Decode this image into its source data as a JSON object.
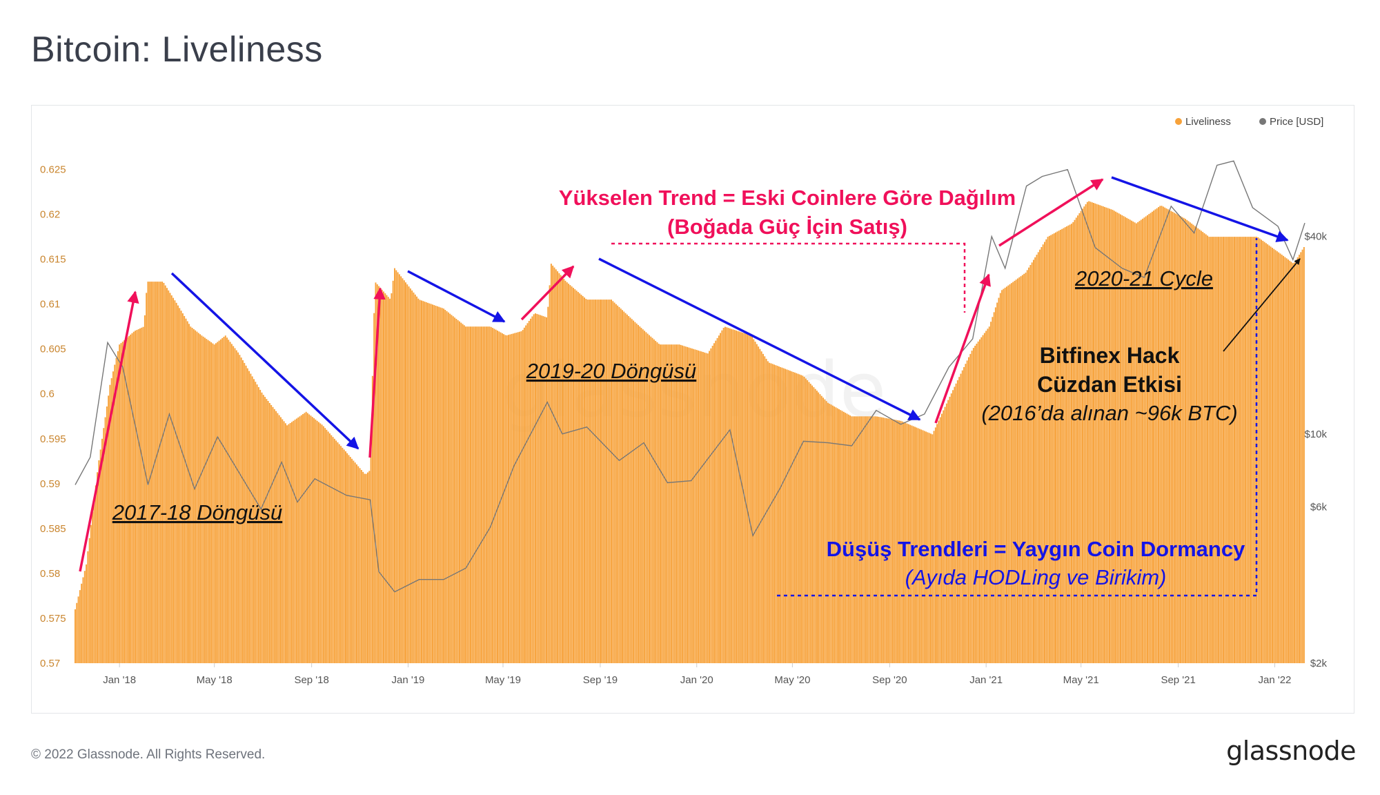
{
  "title": "Bitcoin: Liveliness",
  "footer": "© 2022 Glassnode. All Rights Reserved.",
  "brand": "glassnode",
  "watermark": "glassnode",
  "colors": {
    "liveliness": "#f7a23a",
    "price": "#777777",
    "up_arrow": "#f0105a",
    "down_arrow": "#1414e6",
    "axis_left": "#c9852e",
    "axis_right": "#555555"
  },
  "chart_data": {
    "type": "bar",
    "title": "Bitcoin: Liveliness",
    "legend": [
      {
        "label": "Liveliness",
        "color": "#f7a23a"
      },
      {
        "label": "Price [USD]",
        "color": "#777777"
      }
    ],
    "legend_position": "top-right",
    "x_ticks": [
      "Jan '18",
      "May '18",
      "Sep '18",
      "Jan '19",
      "May '19",
      "Sep '19",
      "Jan '20",
      "May '20",
      "Sep '20",
      "Jan '21",
      "May '21",
      "Sep '21",
      "Jan '22"
    ],
    "x_range": [
      "2017-11-06",
      "2022-02-08"
    ],
    "y_left": {
      "label": "Liveliness",
      "ylim": [
        0.57,
        0.6275
      ],
      "ticks": [
        "0.57",
        "0.575",
        "0.58",
        "0.585",
        "0.59",
        "0.595",
        "0.6",
        "0.605",
        "0.61",
        "0.615",
        "0.62",
        "0.625"
      ]
    },
    "y_right": {
      "label": "Price [USD]",
      "scale": "log",
      "ylim": [
        2000,
        75000
      ],
      "ticks": [
        {
          "value": 2000,
          "label": "$2k"
        },
        {
          "value": 6000,
          "label": "$6k"
        },
        {
          "value": 10000,
          "label": "$10k"
        },
        {
          "value": 40000,
          "label": "$40k"
        }
      ]
    },
    "liveliness_series": {
      "name": "Liveliness",
      "points": [
        [
          "2017-11-06",
          0.576
        ],
        [
          "2017-11-20",
          0.581
        ],
        [
          "2017-12-05",
          0.592
        ],
        [
          "2017-12-20",
          0.601
        ],
        [
          "2018-01-01",
          0.6055
        ],
        [
          "2018-01-20",
          0.607
        ],
        [
          "2018-02-01",
          0.6075
        ],
        [
          "2018-02-05",
          0.6125
        ],
        [
          "2018-02-25",
          0.6125
        ],
        [
          "2018-03-15",
          0.61
        ],
        [
          "2018-04-01",
          0.6075
        ],
        [
          "2018-04-15",
          0.6065
        ],
        [
          "2018-05-01",
          0.6055
        ],
        [
          "2018-05-15",
          0.6065
        ],
        [
          "2018-06-01",
          0.6045
        ],
        [
          "2018-07-01",
          0.6
        ],
        [
          "2018-08-01",
          0.5965
        ],
        [
          "2018-08-25",
          0.598
        ],
        [
          "2018-09-15",
          0.5965
        ],
        [
          "2018-10-15",
          0.5935
        ],
        [
          "2018-11-08",
          0.591
        ],
        [
          "2018-11-14",
          0.5915
        ],
        [
          "2018-11-20",
          0.6125
        ],
        [
          "2018-11-30",
          0.6115
        ],
        [
          "2018-12-10",
          0.6105
        ],
        [
          "2018-12-15",
          0.614
        ],
        [
          "2019-01-15",
          0.6105
        ],
        [
          "2019-02-15",
          0.6095
        ],
        [
          "2019-03-15",
          0.6075
        ],
        [
          "2019-04-15",
          0.6075
        ],
        [
          "2019-05-05",
          0.6065
        ],
        [
          "2019-05-25",
          0.607
        ],
        [
          "2019-06-10",
          0.609
        ],
        [
          "2019-06-26",
          0.6085
        ],
        [
          "2019-07-01",
          0.6145
        ],
        [
          "2019-07-20",
          0.6125
        ],
        [
          "2019-08-15",
          0.6105
        ],
        [
          "2019-09-15",
          0.6105
        ],
        [
          "2019-10-15",
          0.608
        ],
        [
          "2019-11-15",
          0.6055
        ],
        [
          "2019-12-10",
          0.6055
        ],
        [
          "2020-01-15",
          0.6045
        ],
        [
          "2020-02-05",
          0.6075
        ],
        [
          "2020-03-10",
          0.6065
        ],
        [
          "2020-04-01",
          0.6035
        ],
        [
          "2020-05-15",
          0.602
        ],
        [
          "2020-06-15",
          0.599
        ],
        [
          "2020-07-15",
          0.5975
        ],
        [
          "2020-08-15",
          0.5975
        ],
        [
          "2020-09-15",
          0.597
        ],
        [
          "2020-10-25",
          0.5955
        ],
        [
          "2020-11-15",
          0.5995
        ],
        [
          "2020-12-15",
          0.605
        ],
        [
          "2021-01-05",
          0.6075
        ],
        [
          "2021-01-20",
          0.6115
        ],
        [
          "2021-02-20",
          0.6135
        ],
        [
          "2021-03-20",
          0.6175
        ],
        [
          "2021-04-20",
          0.619
        ],
        [
          "2021-05-10",
          0.6215
        ],
        [
          "2021-06-10",
          0.6205
        ],
        [
          "2021-07-10",
          0.619
        ],
        [
          "2021-08-10",
          0.621
        ],
        [
          "2021-09-10",
          0.6195
        ],
        [
          "2021-10-10",
          0.6175
        ],
        [
          "2021-11-10",
          0.6175
        ],
        [
          "2021-12-10",
          0.6175
        ],
        [
          "2022-01-10",
          0.6155
        ],
        [
          "2022-01-25",
          0.6145
        ],
        [
          "2022-02-08",
          0.6165
        ]
      ]
    },
    "price_series": {
      "name": "Price [USD]",
      "points": [
        [
          "2017-11-06",
          7000
        ],
        [
          "2017-11-25",
          8500
        ],
        [
          "2017-12-17",
          19000
        ],
        [
          "2018-01-05",
          16000
        ],
        [
          "2018-02-06",
          7000
        ],
        [
          "2018-03-05",
          11500
        ],
        [
          "2018-04-06",
          6800
        ],
        [
          "2018-05-05",
          9800
        ],
        [
          "2018-06-29",
          5900
        ],
        [
          "2018-07-25",
          8200
        ],
        [
          "2018-08-14",
          6200
        ],
        [
          "2018-09-05",
          7300
        ],
        [
          "2018-10-15",
          6500
        ],
        [
          "2018-11-14",
          6300
        ],
        [
          "2018-11-25",
          3800
        ],
        [
          "2018-12-15",
          3300
        ],
        [
          "2019-01-15",
          3600
        ],
        [
          "2019-02-15",
          3600
        ],
        [
          "2019-03-15",
          3900
        ],
        [
          "2019-04-15",
          5200
        ],
        [
          "2019-05-15",
          8000
        ],
        [
          "2019-06-26",
          12500
        ],
        [
          "2019-07-15",
          10000
        ],
        [
          "2019-08-15",
          10500
        ],
        [
          "2019-09-25",
          8300
        ],
        [
          "2019-10-26",
          9400
        ],
        [
          "2019-11-25",
          7100
        ],
        [
          "2019-12-25",
          7200
        ],
        [
          "2020-02-12",
          10300
        ],
        [
          "2020-03-12",
          4900
        ],
        [
          "2020-04-15",
          6800
        ],
        [
          "2020-05-15",
          9500
        ],
        [
          "2020-06-15",
          9400
        ],
        [
          "2020-07-15",
          9200
        ],
        [
          "2020-08-15",
          11800
        ],
        [
          "2020-09-15",
          10700
        ],
        [
          "2020-10-15",
          11500
        ],
        [
          "2020-11-15",
          16000
        ],
        [
          "2020-12-15",
          19500
        ],
        [
          "2021-01-08",
          40000
        ],
        [
          "2021-01-25",
          32000
        ],
        [
          "2021-02-21",
          57000
        ],
        [
          "2021-03-13",
          61000
        ],
        [
          "2021-04-14",
          64000
        ],
        [
          "2021-05-19",
          37000
        ],
        [
          "2021-06-22",
          32000
        ],
        [
          "2021-07-20",
          30000
        ],
        [
          "2021-08-23",
          49500
        ],
        [
          "2021-09-21",
          41000
        ],
        [
          "2021-10-20",
          66000
        ],
        [
          "2021-11-10",
          68000
        ],
        [
          "2021-12-04",
          49000
        ],
        [
          "2022-01-05",
          43000
        ],
        [
          "2022-01-24",
          34000
        ],
        [
          "2022-02-08",
          44000
        ]
      ]
    },
    "annotations": {
      "rising_title": "Yükselen Trend = Eski Coinlere Göre Dağılım",
      "rising_sub": "(Boğada Güç İçin Satış)",
      "falling_title": "Düşüş Trendleri = Yaygın Coin Dormancy",
      "falling_sub": "(Ayıda HODLing ve Birikim)",
      "cycle_2017": "2017-18 Döngüsü",
      "cycle_2019": "2019-20 Döngüsü",
      "cycle_2021": "2020-21 Cycle",
      "hack_line1": "Bitfinex Hack",
      "hack_line2": "Cüzdan Etkisi",
      "hack_sub": "(2016’da alınan ~96k BTC)"
    }
  }
}
